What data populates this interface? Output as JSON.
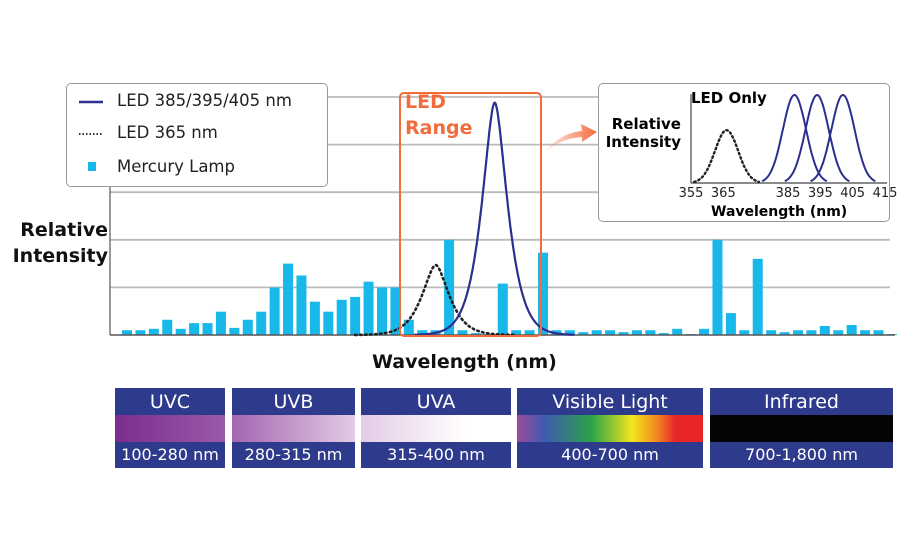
{
  "chart_data": {
    "type": "bar",
    "title": "",
    "xlabel": "Wavelength (nm)",
    "ylabel": "Relative Intensity",
    "ylim": [
      0,
      5
    ],
    "grid": true,
    "legend_placement": "top-left",
    "legend": [
      {
        "label": "LED 385/395/405 nm",
        "style": "solid-line",
        "color": "#2b2f8f"
      },
      {
        "label": "LED 365 nm",
        "style": "dotted-line",
        "color": "#222222"
      },
      {
        "label": "Mercury Lamp",
        "style": "square",
        "color": "#19b8ea"
      }
    ],
    "series": [
      {
        "name": "Mercury Lamp",
        "type": "bar",
        "color": "#19b8ea",
        "values": [
          0.1,
          0.1,
          0.13,
          0.32,
          0.13,
          0.25,
          0.25,
          0.49,
          0.15,
          0.32,
          0.49,
          1.0,
          1.5,
          1.25,
          0.7,
          0.49,
          0.74,
          0.8,
          1.12,
          1.0,
          1.0,
          0.32,
          0.1,
          0.1,
          2.0,
          0.1,
          0.04,
          0.02,
          1.08,
          0.1,
          0.1,
          1.73,
          0.1,
          0.1,
          0.06,
          0.1,
          0.1,
          0.06,
          0.1,
          0.1,
          0.04,
          0.13,
          0.02,
          0.13,
          2.0,
          0.46,
          0.1,
          1.6,
          0.1,
          0.06,
          0.1,
          0.1,
          0.19,
          0.1,
          0.21,
          0.1,
          0.1,
          0.02
        ]
      },
      {
        "name": "LED 385/395/405 nm",
        "type": "line",
        "color": "#2b2f8f",
        "peak_bar_index": 27.4,
        "peak_value": 4.98,
        "width": 0.85
      },
      {
        "name": "LED 365 nm",
        "type": "line",
        "color": "#222222",
        "peak_bar_index": 23.0,
        "peak_value": 1.5,
        "width": 0.9
      }
    ],
    "highlight": {
      "label_line1": "LED",
      "label_line2": "Range",
      "color": "#f26b3a"
    },
    "inset": {
      "title": "LED Only",
      "ylabel_line1": "Relative",
      "ylabel_line2": "Intensity",
      "xlabel": "Wavelength (nm)",
      "xticks": [
        355,
        365,
        385,
        395,
        405,
        415
      ],
      "xlim": [
        355,
        415
      ],
      "ylim": [
        0,
        1
      ],
      "series": [
        {
          "name": "LED 365 nm",
          "peak_nm": 366,
          "peak_value": 0.6,
          "style": "dotted"
        },
        {
          "name": "LED 385 nm",
          "peak_nm": 387,
          "peak_value": 1.0,
          "style": "solid"
        },
        {
          "name": "LED 395 nm",
          "peak_nm": 394,
          "peak_value": 1.0,
          "style": "solid"
        },
        {
          "name": "LED 405 nm",
          "peak_nm": 402,
          "peak_value": 1.0,
          "style": "solid"
        }
      ]
    },
    "spectrum_bands": [
      {
        "name": "UVC",
        "range": "100-280 nm"
      },
      {
        "name": "UVB",
        "range": "280-315 nm"
      },
      {
        "name": "UVA",
        "range": "315-400 nm"
      },
      {
        "name": "Visible Light",
        "range": "400-700 nm"
      },
      {
        "name": "Infrared",
        "range": "700-1,800 nm"
      }
    ]
  }
}
